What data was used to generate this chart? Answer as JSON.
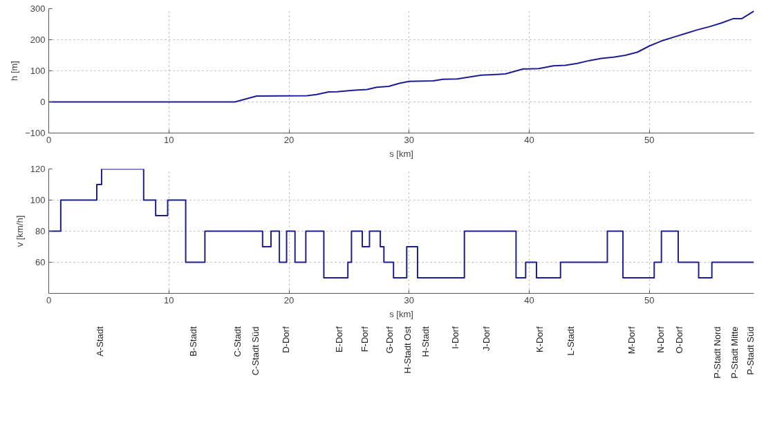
{
  "chart_data": [
    {
      "type": "line",
      "xlabel": "s [km]",
      "ylabel": "h [m]",
      "xlim": [
        0,
        58.7
      ],
      "xticks": [
        0,
        10,
        20,
        30,
        40,
        50
      ],
      "ylim": [
        -100,
        300
      ],
      "yticks": [
        -100,
        0,
        100,
        200,
        300
      ],
      "grid": true,
      "series": [
        {
          "color": "#1c1c94",
          "x": [
            0,
            8,
            15.5,
            17.3,
            21.5,
            22.3,
            23.3,
            24,
            25.5,
            26.5,
            27.3,
            28.3,
            29.2,
            30,
            32,
            32.8,
            34,
            36,
            37,
            38,
            39.5,
            40.8,
            42,
            43,
            44,
            45,
            46,
            47,
            48,
            49,
            50,
            51,
            52,
            53,
            54,
            55,
            56,
            57,
            57.7,
            58.7
          ],
          "values": [
            0,
            0,
            0,
            19,
            20,
            24,
            32,
            33,
            38,
            40,
            47,
            50,
            60,
            66,
            68,
            73,
            74,
            86,
            88,
            90,
            106,
            107,
            116,
            118,
            124,
            133,
            140,
            144,
            150,
            160,
            180,
            196,
            208,
            220,
            232,
            242,
            254,
            268,
            268,
            292
          ]
        }
      ]
    },
    {
      "type": "step",
      "xlabel": "s [km]",
      "ylabel": "v [km/h]",
      "xlim": [
        0,
        58.7
      ],
      "xticks": [
        0,
        10,
        20,
        30,
        40,
        50
      ],
      "ylim": [
        40,
        120
      ],
      "yticks": [
        60,
        80,
        100,
        120
      ],
      "grid": true,
      "series": [
        {
          "color": "#1c1c94",
          "x": [
            0,
            1.0,
            4.0,
            4.4,
            7.9,
            8.9,
            9.9,
            11.4,
            13.0,
            17.8,
            18.5,
            19.2,
            19.8,
            20.5,
            21.4,
            22.9,
            24.9,
            25.2,
            26.1,
            26.7,
            27.6,
            27.9,
            28.7,
            29.8,
            30.7,
            34.6,
            38.9,
            39.7,
            40.6,
            42.6,
            46.5,
            47.8,
            50.4,
            51.0,
            52.4,
            54.1,
            55.2,
            58.7
          ],
          "values": [
            80,
            100,
            110,
            120,
            100,
            90,
            100,
            60,
            80,
            70,
            80,
            60,
            80,
            60,
            80,
            50,
            60,
            80,
            70,
            80,
            70,
            60,
            50,
            70,
            50,
            80,
            50,
            60,
            50,
            60,
            80,
            50,
            60,
            80,
            60,
            50,
            60,
            60
          ]
        }
      ]
    },
    {
      "type": "other",
      "annotations": [
        "A-Stadt",
        "B-Stadt",
        "C-Stadt",
        "C-Stadt Süd",
        "D-Dorf",
        "E-Dorf",
        "F-Dorf",
        "G-Dorf",
        "H-Stadt Ost",
        "H-Stadt",
        "I-Dorf",
        "J-Dorf",
        "K-Dorf",
        "L-Stadt",
        "M-Dorf",
        "N-Dorf",
        "O-Dorf",
        "P-Stadt Nord",
        "P-Stadt Mitte",
        "P-Stadt Süd"
      ]
    }
  ]
}
